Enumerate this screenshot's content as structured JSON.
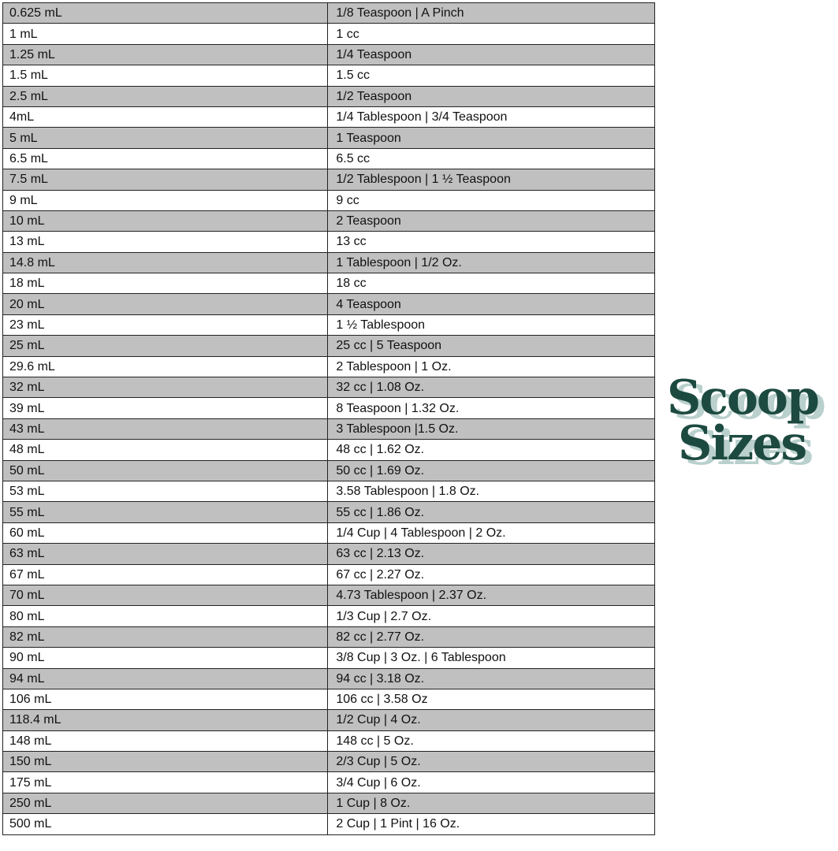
{
  "title": {
    "line1": "Scoop",
    "line2": "Sizes",
    "color": "#1d4a40",
    "shadow_color": "#b9d0cd"
  },
  "rows": [
    [
      "0.625 mL",
      "1/8 Teaspoon | A Pinch"
    ],
    [
      "1 mL",
      "1 cc"
    ],
    [
      "1.25 mL",
      "1/4 Teaspoon"
    ],
    [
      "1.5 mL",
      "1.5 cc"
    ],
    [
      "2.5 mL",
      "1/2 Teaspoon"
    ],
    [
      "4mL",
      "1/4 Tablespoon | 3/4 Teaspoon"
    ],
    [
      "5 mL",
      "1 Teaspoon"
    ],
    [
      "6.5 mL",
      "6.5 cc"
    ],
    [
      "7.5 mL",
      "1/2 Tablespoon | 1 ½ Teaspoon"
    ],
    [
      "9 mL",
      "9 cc"
    ],
    [
      "10 mL",
      "2 Teaspoon"
    ],
    [
      "13 mL",
      "13 cc"
    ],
    [
      "14.8 mL",
      "1 Tablespoon | 1/2 Oz."
    ],
    [
      "18 mL",
      "18 cc"
    ],
    [
      "20 mL",
      "4 Teaspoon"
    ],
    [
      "23 mL",
      "1 ½ Tablespoon"
    ],
    [
      "25 mL",
      "25 cc | 5 Teaspoon"
    ],
    [
      "29.6 mL",
      "2 Tablespoon | 1 Oz."
    ],
    [
      "32 mL",
      "32 cc | 1.08 Oz."
    ],
    [
      "39 mL",
      "8 Teaspoon | 1.32 Oz."
    ],
    [
      "43 mL",
      "3 Tablespoon |1.5 Oz."
    ],
    [
      "48 mL",
      "48 cc | 1.62 Oz."
    ],
    [
      "50 mL",
      "50 cc | 1.69 Oz."
    ],
    [
      "53 mL",
      "3.58 Tablespoon | 1.8 Oz."
    ],
    [
      "55 mL",
      "55 cc | 1.86 Oz."
    ],
    [
      "60 mL",
      "1/4 Cup | 4 Tablespoon | 2 Oz."
    ],
    [
      "63 mL",
      "63 cc | 2.13 Oz."
    ],
    [
      "67 mL",
      "67 cc | 2.27 Oz."
    ],
    [
      "70 mL",
      "4.73 Tablespoon | 2.37 Oz."
    ],
    [
      "80 mL",
      "1/3 Cup | 2.7 Oz."
    ],
    [
      "82 mL",
      "82 cc | 2.77 Oz."
    ],
    [
      "90 mL",
      "3/8 Cup | 3 Oz. | 6 Tablespoon"
    ],
    [
      "94 mL",
      "94 cc | 3.18 Oz."
    ],
    [
      "106 mL",
      "106 cc | 3.58 Oz"
    ],
    [
      "118.4 mL",
      "1/2 Cup | 4 Oz."
    ],
    [
      "148 mL",
      "148 cc | 5 Oz."
    ],
    [
      "150 mL",
      "2/3 Cup | 5 Oz."
    ],
    [
      "175 mL",
      "3/4 Cup | 6 Oz."
    ],
    [
      "250 mL",
      "1 Cup | 8 Oz."
    ],
    [
      "500 mL",
      "2 Cup | 1 Pint | 16 Oz."
    ]
  ]
}
